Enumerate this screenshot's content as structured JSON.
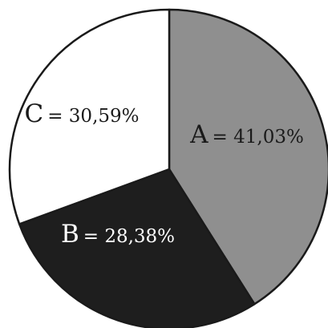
{
  "chart_data": {
    "type": "pie",
    "slices": [
      {
        "label": "A",
        "value_text": "= 41,03%",
        "value": 41.03,
        "color": "#8f8f8f",
        "text_color": "#1a1a1a"
      },
      {
        "label": "B",
        "value_text": "= 28,38%",
        "value": 28.38,
        "color": "#1e1e1e",
        "text_color": "#ffffff"
      },
      {
        "label": "C",
        "value_text": "= 30,59%",
        "value": 30.59,
        "color": "#ffffff",
        "text_color": "#1a1a1a"
      }
    ],
    "start_angle": "12 o'clock",
    "direction": "clockwise",
    "legend": false
  }
}
